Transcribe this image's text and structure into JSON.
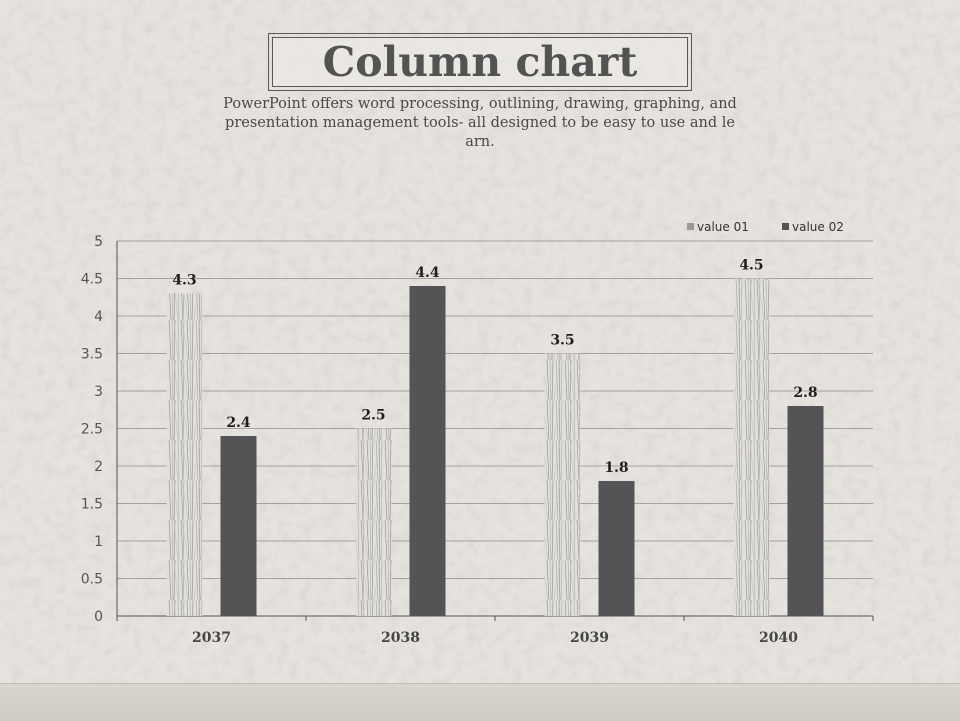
{
  "slide": {
    "title": "Column chart",
    "subtitle_lines": [
      "PowerPoint offers word processing, outlining, drawing, graphing, and",
      "presentation management tools- all designed to be easy to use and le",
      "arn."
    ]
  },
  "chart_data": {
    "type": "bar",
    "categories": [
      "2037",
      "2038",
      "2039",
      "2040"
    ],
    "series": [
      {
        "name": "value 01",
        "values": [
          4.3,
          2.5,
          3.5,
          4.5
        ],
        "color": "#8a8888",
        "style": "sketch"
      },
      {
        "name": "value 02",
        "values": [
          2.4,
          4.4,
          1.8,
          2.8
        ],
        "color": "#545356",
        "style": "solid"
      }
    ],
    "ylim": [
      0,
      5
    ],
    "yticks": [
      0,
      0.5,
      1,
      1.5,
      2,
      2.5,
      3,
      3.5,
      4,
      4.5,
      5
    ],
    "ytick_labels": [
      "0",
      "0.5",
      "1",
      "1.5",
      "2",
      "2.5",
      "3",
      "3.5",
      "4",
      "4.5",
      "5"
    ],
    "grid": true,
    "legend": "top-right",
    "data_labels": true
  }
}
